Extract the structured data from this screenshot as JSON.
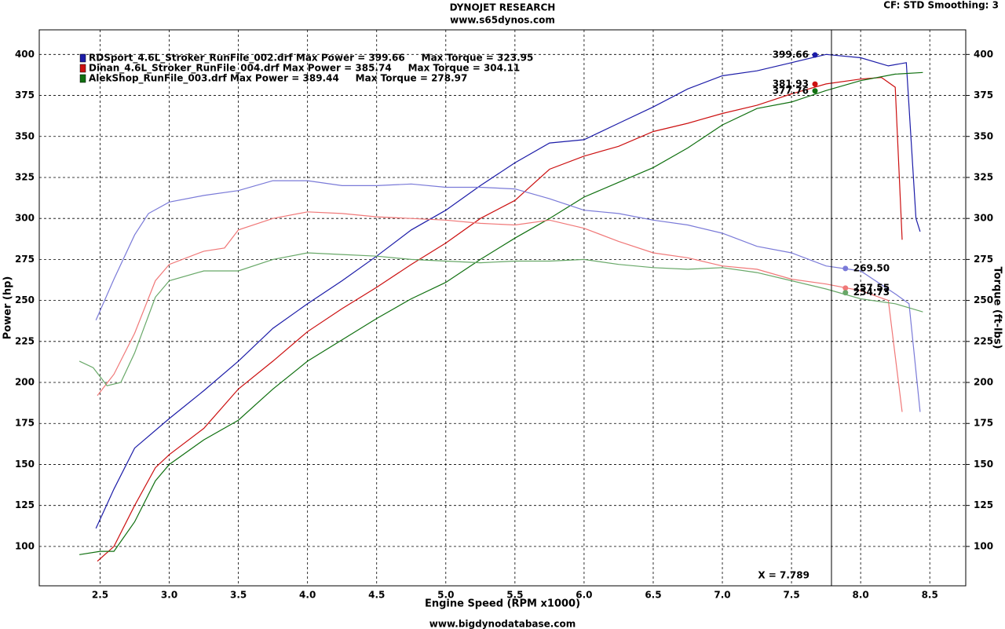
{
  "chart_data": {
    "type": "line",
    "title": "DYNOJET RESEARCH",
    "subtitle": "www.s65dynos.com",
    "settings_text": "CF: STD  Smoothing: 3",
    "footer": "www.bigdynodatabase.com",
    "x_label": "Engine Speed (RPM x1000)",
    "y_label": "Power (hp)",
    "y2_label": "Torque (ft-lbs)",
    "xlim": [
      2.06,
      8.76
    ],
    "ylim": [
      76,
      415
    ],
    "y2lim": [
      76,
      415
    ],
    "xticks": [
      {
        "value": 2.5,
        "label": "2.5"
      },
      {
        "value": 3,
        "label": "3.0"
      },
      {
        "value": 3.5,
        "label": "3.5"
      },
      {
        "value": 4,
        "label": "4.0"
      },
      {
        "value": 4.5,
        "label": "4.5"
      },
      {
        "value": 5,
        "label": "5.0"
      },
      {
        "value": 5.5,
        "label": "5.5"
      },
      {
        "value": 6,
        "label": "6.0"
      },
      {
        "value": 6.5,
        "label": "6.5"
      },
      {
        "value": 7,
        "label": "7.0"
      },
      {
        "value": 7.5,
        "label": "7.5"
      },
      {
        "value": 8,
        "label": "8.0"
      },
      {
        "value": 8.5,
        "label": "8.5"
      }
    ],
    "yticks": [
      100,
      125,
      150,
      175,
      200,
      225,
      250,
      275,
      300,
      325,
      350,
      375,
      400
    ],
    "y2ticks": [
      100,
      125,
      150,
      175,
      200,
      225,
      250,
      275,
      300,
      325,
      350,
      375,
      400
    ],
    "grid": true,
    "cursor": {
      "value": 7.789,
      "label": "X = 7.789"
    },
    "series": [
      {
        "name": "RDSport_4.6L_Stroker_RunFile_002.drf Max Power = 399.66     Max Torque = 323.95",
        "color": "#1c1ca8",
        "x": [
          2.47,
          2.6,
          2.75,
          3.0,
          3.25,
          3.5,
          3.75,
          4.0,
          4.25,
          4.5,
          4.75,
          5.0,
          5.25,
          5.5,
          5.75,
          6.0,
          6.25,
          6.5,
          6.75,
          7.0,
          7.25,
          7.5,
          7.75,
          8.0,
          8.2,
          8.33,
          8.4,
          8.43
        ],
        "values": [
          111,
          135,
          160,
          178,
          195,
          213,
          233,
          248,
          262,
          277,
          293,
          305,
          320,
          334,
          346,
          348,
          358,
          368,
          379,
          387,
          390,
          395,
          400,
          398,
          393,
          395,
          300,
          292
        ]
      },
      {
        "name": "Dinan_4.6L_Stroker_RunFile_004.drf Max Power = 385.74     Max Torque = 304.11",
        "color": "#cc1010",
        "x": [
          2.48,
          2.6,
          2.75,
          2.9,
          3.0,
          3.25,
          3.5,
          3.75,
          4.0,
          4.25,
          4.5,
          4.75,
          5.0,
          5.25,
          5.5,
          5.75,
          6.0,
          6.25,
          6.5,
          6.75,
          7.0,
          7.25,
          7.5,
          7.75,
          8.0,
          8.15,
          8.25,
          8.3
        ],
        "values": [
          91,
          100,
          125,
          148,
          156,
          172,
          196,
          213,
          231,
          245,
          258,
          272,
          285,
          300,
          311,
          330,
          338,
          344,
          353,
          358,
          364,
          369,
          376,
          382,
          385,
          386,
          380,
          287
        ]
      },
      {
        "name": "AlekShop_RunFile_003.drf Max Power = 389.44     Max Torque = 278.97",
        "color": "#107010",
        "x": [
          2.35,
          2.5,
          2.6,
          2.75,
          2.9,
          3.0,
          3.25,
          3.5,
          3.75,
          4.0,
          4.25,
          4.5,
          4.75,
          5.0,
          5.25,
          5.5,
          5.75,
          6.0,
          6.25,
          6.5,
          6.75,
          7.0,
          7.25,
          7.5,
          7.75,
          8.0,
          8.25,
          8.45
        ],
        "values": [
          95,
          97,
          97,
          115,
          140,
          150,
          165,
          177,
          196,
          213,
          226,
          239,
          251,
          261,
          275,
          288,
          300,
          313,
          322,
          331,
          343,
          357,
          367,
          371,
          378,
          384,
          388,
          389
        ]
      },
      {
        "color": "#7a7ad8",
        "axis": "y2",
        "x": [
          2.47,
          2.6,
          2.75,
          2.85,
          3.0,
          3.25,
          3.5,
          3.75,
          4.0,
          4.25,
          4.5,
          4.75,
          5.0,
          5.25,
          5.5,
          5.75,
          6.0,
          6.25,
          6.5,
          6.75,
          7.0,
          7.25,
          7.5,
          7.75,
          8.0,
          8.25,
          8.35,
          8.43
        ],
        "values": [
          238,
          263,
          290,
          303,
          310,
          314,
          317,
          323,
          323,
          320,
          320,
          321,
          319,
          319,
          318,
          312,
          305,
          303,
          299,
          296,
          291,
          283,
          279,
          271,
          268,
          254,
          248,
          182
        ]
      },
      {
        "color": "#f07878",
        "axis": "y2",
        "x": [
          2.48,
          2.6,
          2.75,
          2.9,
          3.0,
          3.25,
          3.4,
          3.5,
          3.75,
          4.0,
          4.25,
          4.5,
          4.75,
          5.0,
          5.25,
          5.5,
          5.75,
          6.0,
          6.25,
          6.5,
          6.75,
          7.0,
          7.25,
          7.5,
          7.75,
          8.0,
          8.2,
          8.3
        ],
        "values": [
          192,
          205,
          230,
          262,
          272,
          280,
          282,
          293,
          300,
          304,
          303,
          301,
          300,
          299,
          297,
          296,
          299,
          294,
          286,
          279,
          276,
          271,
          269,
          263,
          260,
          256,
          250,
          182
        ]
      },
      {
        "color": "#68a868",
        "axis": "y2",
        "x": [
          2.35,
          2.45,
          2.55,
          2.65,
          2.75,
          2.9,
          3.0,
          3.25,
          3.5,
          3.75,
          4.0,
          4.25,
          4.5,
          4.75,
          5.0,
          5.25,
          5.5,
          5.75,
          6.0,
          6.25,
          6.5,
          6.75,
          7.0,
          7.25,
          7.5,
          7.75,
          8.0,
          8.25,
          8.45
        ],
        "values": [
          213,
          209,
          198,
          200,
          218,
          252,
          262,
          268,
          268,
          275,
          279,
          278,
          277,
          275,
          274,
          273,
          274,
          274,
          275,
          272,
          270,
          269,
          270,
          267,
          262,
          257,
          251,
          248,
          243
        ]
      }
    ],
    "annotations": [
      {
        "label": "399.66",
        "value": 399.66,
        "x": 7.67,
        "color": "#1c1ca8"
      },
      {
        "label": "381.93",
        "value": 381.93,
        "x": 7.67,
        "color": "#cc1010"
      },
      {
        "label": "377.76",
        "value": 377.76,
        "x": 7.67,
        "color": "#107010"
      },
      {
        "label": "269.50",
        "value": 269.5,
        "x": 7.89,
        "color": "#7a7ad8",
        "axis": "y2"
      },
      {
        "label": "257.55",
        "value": 257.55,
        "x": 7.89,
        "color": "#f07878",
        "axis": "y2"
      },
      {
        "label": "254.73",
        "value": 254.73,
        "x": 7.89,
        "color": "#68a868",
        "axis": "y2"
      }
    ]
  }
}
